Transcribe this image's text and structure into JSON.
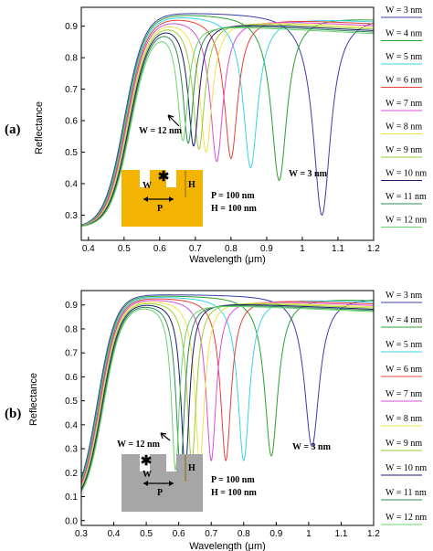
{
  "chart_data": [
    {
      "type": "line",
      "panel_label": "(a)",
      "xlabel": "Wavelength (μm)",
      "ylabel": "Reflectance",
      "xlim": [
        0.38,
        1.2
      ],
      "ylim": [
        0.22,
        0.96
      ],
      "xticks": [
        0.4,
        0.5,
        0.6,
        0.7,
        0.8,
        0.9,
        1.0,
        1.1,
        1.2
      ],
      "xtick_labels": [
        "0.4",
        "0.5",
        "0.6",
        "0.7",
        "0.8",
        "0.9",
        "1",
        "1.1",
        "1.2"
      ],
      "yticks": [
        0.3,
        0.4,
        0.5,
        0.6,
        0.7,
        0.8,
        0.9
      ],
      "ytick_labels": [
        "0.3",
        "0.4",
        "0.5",
        "0.6",
        "0.7",
        "0.8",
        "0.9"
      ],
      "edge_center": 0.5,
      "floor": 0.26,
      "series": [
        {
          "name": "W = 3 nm",
          "color": "#3b3bb0",
          "dip_x": 1.055,
          "dip_y": 0.3,
          "dip_w": 0.03,
          "hump_y": 0.0
        },
        {
          "name": "W = 4 nm",
          "color": "#2ca02c",
          "dip_x": 0.935,
          "dip_y": 0.41,
          "dip_w": 0.027,
          "hump_y": 0.0
        },
        {
          "name": "W = 5 nm",
          "color": "#37d4e6",
          "dip_x": 0.855,
          "dip_y": 0.45,
          "dip_w": 0.025,
          "hump_y": 0.0
        },
        {
          "name": "W = 6 nm",
          "color": "#e8403a",
          "dip_x": 0.8,
          "dip_y": 0.48,
          "dip_w": 0.023,
          "hump_y": 0.0
        },
        {
          "name": "W = 7 nm",
          "color": "#d64fd6",
          "dip_x": 0.76,
          "dip_y": 0.47,
          "dip_w": 0.022,
          "hump_y": 0.0
        },
        {
          "name": "W = 8 nm",
          "color": "#f2e04a",
          "dip_x": 0.73,
          "dip_y": 0.5,
          "dip_w": 0.021,
          "hump_y": 0.63
        },
        {
          "name": "W = 9 nm",
          "color": "#9acd32",
          "dip_x": 0.71,
          "dip_y": 0.51,
          "dip_w": 0.02,
          "hump_y": 0.66
        },
        {
          "name": "W = 10 nm",
          "color": "#1a1a6b",
          "dip_x": 0.695,
          "dip_y": 0.52,
          "dip_w": 0.019,
          "hump_y": 0.69
        },
        {
          "name": "W = 11 nm",
          "color": "#2e8b57",
          "dip_x": 0.68,
          "dip_y": 0.53,
          "dip_w": 0.018,
          "hump_y": 0.71
        },
        {
          "name": "W = 12 nm",
          "color": "#6bd36b",
          "dip_x": 0.665,
          "dip_y": 0.54,
          "dip_w": 0.018,
          "hump_y": 0.73
        }
      ],
      "annotations": {
        "w_first": "W = 12 nm",
        "w_last": "W = 3 nm",
        "period": "P = 100 nm",
        "height": "H = 100 nm",
        "inset_w": "W",
        "inset_p": "P",
        "inset_h": "H"
      },
      "inset_color": "#f2b400"
    },
    {
      "type": "line",
      "panel_label": "(b)",
      "xlabel": "Wavelength (μm)",
      "ylabel": "Reflectance",
      "xlim": [
        0.3,
        1.2
      ],
      "ylim": [
        -0.02,
        0.96
      ],
      "xticks": [
        0.3,
        0.4,
        0.5,
        0.6,
        0.7,
        0.8,
        0.9,
        1.0,
        1.1,
        1.2
      ],
      "xtick_labels": [
        "0.3",
        "0.4",
        "0.5",
        "0.6",
        "0.7",
        "0.8",
        "0.9",
        "1",
        "1.1",
        "1.2"
      ],
      "yticks": [
        0.0,
        0.1,
        0.2,
        0.3,
        0.4,
        0.5,
        0.6,
        0.7,
        0.8,
        0.9
      ],
      "ytick_labels": [
        "0.0",
        "0.1",
        "0.2",
        "0.3",
        "0.4",
        "0.5",
        "0.6",
        "0.7",
        "0.8",
        "0.9"
      ],
      "edge_center": 0.35,
      "floor": 0.05,
      "series": [
        {
          "name": "W = 3 nm",
          "color": "#3b3bb0",
          "dip_x": 1.01,
          "dip_y": 0.31,
          "dip_w": 0.028,
          "hump_y": 0.0
        },
        {
          "name": "W = 4 nm",
          "color": "#2ca02c",
          "dip_x": 0.885,
          "dip_y": 0.27,
          "dip_w": 0.025,
          "hump_y": 0.0
        },
        {
          "name": "W = 5 nm",
          "color": "#37d4e6",
          "dip_x": 0.8,
          "dip_y": 0.25,
          "dip_w": 0.022,
          "hump_y": 0.0
        },
        {
          "name": "W = 6 nm",
          "color": "#e8403a",
          "dip_x": 0.745,
          "dip_y": 0.25,
          "dip_w": 0.02,
          "hump_y": 0.0
        },
        {
          "name": "W = 7 nm",
          "color": "#d64fd6",
          "dip_x": 0.7,
          "dip_y": 0.25,
          "dip_w": 0.019,
          "hump_y": 0.0
        },
        {
          "name": "W = 8 nm",
          "color": "#f2e04a",
          "dip_x": 0.665,
          "dip_y": 0.24,
          "dip_w": 0.018,
          "hump_y": 0.0
        },
        {
          "name": "W = 9 nm",
          "color": "#9acd32",
          "dip_x": 0.64,
          "dip_y": 0.24,
          "dip_w": 0.017,
          "hump_y": 0.0
        },
        {
          "name": "W = 10 nm",
          "color": "#1a1a6b",
          "dip_x": 0.62,
          "dip_y": 0.21,
          "dip_w": 0.016,
          "hump_y": 0.0
        },
        {
          "name": "W = 11 nm",
          "color": "#2e8b57",
          "dip_x": 0.605,
          "dip_y": 0.21,
          "dip_w": 0.016,
          "hump_y": 0.0
        },
        {
          "name": "W = 12 nm",
          "color": "#6bd36b",
          "dip_x": 0.59,
          "dip_y": 0.21,
          "dip_w": 0.015,
          "hump_y": 0.0
        }
      ],
      "annotations": {
        "w_first": "W = 12 nm",
        "w_last": "W = 3 nm",
        "period": "P = 100 nm",
        "height": "H = 100 nm",
        "inset_w": "W",
        "inset_p": "P",
        "inset_h": "H"
      },
      "inset_color": "#a6a6a6"
    }
  ]
}
